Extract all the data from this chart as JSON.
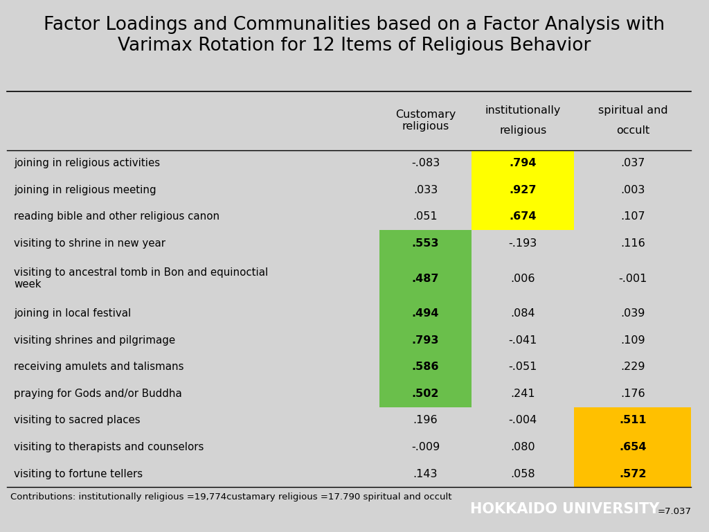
{
  "title": "Factor Loadings and Communalities based on a Factor Analysis with\nVarimax Rotation for 12 Items of Religious Behavior",
  "dark_green": "#1e6b20",
  "light_green": "#6abf4b",
  "yellow": "#ffff00",
  "orange_yellow": "#ffc000",
  "col_headers_line1": [
    "Customary",
    "institutionally spiritual and"
  ],
  "col_headers_line2": [
    "religious",
    "religious        occult"
  ],
  "col_header1": "Customary\nreligious",
  "col_header2": "institutionally\nreligious",
  "col_header3": "spiritual and\noccult",
  "rows": [
    {
      "label": "joining in religious activities",
      "vals": [
        "-.083",
        ".794",
        ".037"
      ],
      "highlight": [
        null,
        "yellow",
        null
      ]
    },
    {
      "label": "joining in religious meeting",
      "vals": [
        ".033",
        ".927",
        ".003"
      ],
      "highlight": [
        null,
        "yellow",
        null
      ]
    },
    {
      "label": "reading bible and other religious canon",
      "vals": [
        ".051",
        ".674",
        ".107"
      ],
      "highlight": [
        null,
        "yellow",
        null
      ]
    },
    {
      "label": "visiting to shrine in new year",
      "vals": [
        ".553",
        "-.193",
        ".116"
      ],
      "highlight": [
        "light_green",
        null,
        null
      ]
    },
    {
      "label": "visiting to ancestral tomb in Bon and equinoctial\nweek",
      "vals": [
        ".487",
        ".006",
        "-.001"
      ],
      "highlight": [
        "light_green",
        null,
        null
      ]
    },
    {
      "label": "joining in local festival",
      "vals": [
        ".494",
        ".084",
        ".039"
      ],
      "highlight": [
        "light_green",
        null,
        null
      ]
    },
    {
      "label": "visiting shrines and pilgrimage",
      "vals": [
        ".793",
        "-.041",
        ".109"
      ],
      "highlight": [
        "light_green",
        null,
        null
      ]
    },
    {
      "label": "receiving amulets and talismans",
      "vals": [
        ".586",
        "-.051",
        ".229"
      ],
      "highlight": [
        "light_green",
        null,
        null
      ]
    },
    {
      "label": "praying for Gods and/or Buddha",
      "vals": [
        ".502",
        ".241",
        ".176"
      ],
      "highlight": [
        "light_green",
        null,
        null
      ]
    },
    {
      "label": "visiting to sacred places",
      "vals": [
        ".196",
        "-.004",
        ".511"
      ],
      "highlight": [
        null,
        null,
        "orange_yellow"
      ]
    },
    {
      "label": "visiting to therapists and counselors",
      "vals": [
        "-.009",
        ".080",
        ".654"
      ],
      "highlight": [
        null,
        null,
        "orange_yellow"
      ]
    },
    {
      "label": "visiting to fortune tellers",
      "vals": [
        ".143",
        ".058",
        ".572"
      ],
      "highlight": [
        null,
        null,
        "orange_yellow"
      ]
    }
  ],
  "footer_text1": "Contributions: institutionally religious =19,774custamary religious =17.790 spiritual and occult",
  "footer_text2": "=7.037",
  "university_text": "HOKKAIDO UNIVERSITY"
}
